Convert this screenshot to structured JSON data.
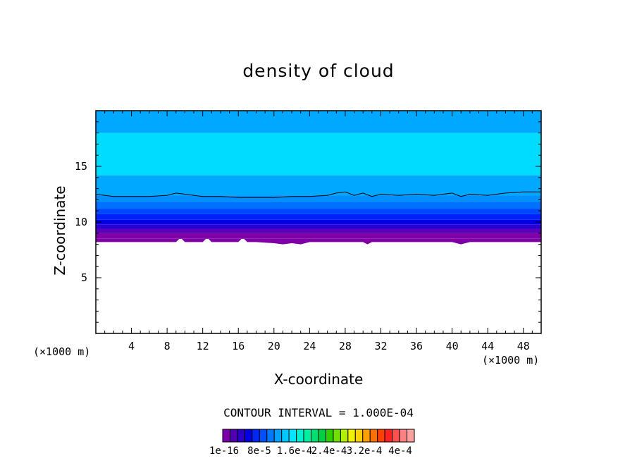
{
  "chart_data": {
    "type": "heatmap",
    "title": "density of cloud",
    "xlabel": "X-coordinate",
    "ylabel": "Z-coordinate",
    "x_unit": "(×1000 m)",
    "y_unit": "(×1000 m)",
    "xlim": [
      0,
      50
    ],
    "ylim": [
      0,
      20
    ],
    "x_ticks": [
      4,
      8,
      12,
      16,
      20,
      24,
      28,
      32,
      36,
      40,
      44,
      48
    ],
    "y_ticks": [
      5,
      10,
      15
    ],
    "contour_interval_text": "CONTOUR INTERVAL = 1.000E-04",
    "colorbar_labels": [
      "1e-16",
      "8e-5",
      "1.6e-4",
      "2.4e-4",
      "3.2e-4",
      "4e-4"
    ],
    "colorbar_colors": [
      "#7a00aa",
      "#5000b0",
      "#2a00c8",
      "#0000e0",
      "#0028f0",
      "#0050ff",
      "#0078ff",
      "#00a0ff",
      "#00c8ff",
      "#00e6ff",
      "#00f0d0",
      "#00f0a0",
      "#00e070",
      "#00d040",
      "#30d000",
      "#70e000",
      "#b0f000",
      "#f0f000",
      "#ffd000",
      "#ffa000",
      "#ff7000",
      "#ff4000",
      "#ff2020",
      "#ff5050",
      "#ff8080",
      "#ffa0a0"
    ],
    "bands": [
      {
        "z_low": 8.5,
        "z_high": 9.0,
        "color": "#8000a8"
      },
      {
        "z_low": 9.0,
        "z_high": 9.4,
        "color": "#5a00b8"
      },
      {
        "z_low": 9.4,
        "z_high": 9.8,
        "color": "#2800d0"
      },
      {
        "z_low": 9.8,
        "z_high": 10.2,
        "color": "#0000e8"
      },
      {
        "z_low": 10.2,
        "z_high": 10.7,
        "color": "#0020f8"
      },
      {
        "z_low": 10.7,
        "z_high": 11.2,
        "color": "#0048ff"
      },
      {
        "z_low": 11.2,
        "z_high": 11.8,
        "color": "#0070ff"
      },
      {
        "z_low": 11.8,
        "z_high": 12.4,
        "color": "#0090ff"
      },
      {
        "z_low": 12.4,
        "z_high": 14.2,
        "color": "#00a8ff"
      },
      {
        "z_low": 14.2,
        "z_high": 18.0,
        "color": "#00dcff"
      },
      {
        "z_low": 18.0,
        "z_high": 20.0,
        "color": "#00a8ff"
      }
    ],
    "contour_line": {
      "x": [
        0,
        2,
        4,
        6,
        8,
        9,
        10,
        12,
        14,
        16,
        18,
        20,
        22,
        24,
        26,
        27,
        28,
        29,
        30,
        31,
        32,
        34,
        36,
        38,
        40,
        41,
        42,
        44,
        46,
        48,
        50
      ],
      "z": [
        12.5,
        12.3,
        12.3,
        12.3,
        12.4,
        12.6,
        12.5,
        12.3,
        12.3,
        12.2,
        12.2,
        12.2,
        12.3,
        12.3,
        12.4,
        12.6,
        12.7,
        12.4,
        12.6,
        12.3,
        12.5,
        12.4,
        12.5,
        12.4,
        12.6,
        12.3,
        12.5,
        12.4,
        12.6,
        12.7,
        12.7
      ]
    },
    "cloud_base": {
      "x": [
        0,
        9,
        9.5,
        10,
        12,
        12.5,
        13,
        16,
        16.5,
        17,
        18,
        20,
        21,
        22,
        23,
        24,
        26,
        30,
        30.5,
        31,
        32,
        40,
        41,
        42,
        50
      ],
      "z": [
        8.2,
        8.2,
        8.6,
        8.2,
        8.2,
        8.6,
        8.2,
        8.2,
        8.6,
        8.2,
        8.2,
        8.1,
        8.0,
        8.1,
        8.0,
        8.2,
        8.2,
        8.2,
        8.0,
        8.2,
        8.2,
        8.2,
        8.0,
        8.2,
        8.2
      ]
    }
  }
}
